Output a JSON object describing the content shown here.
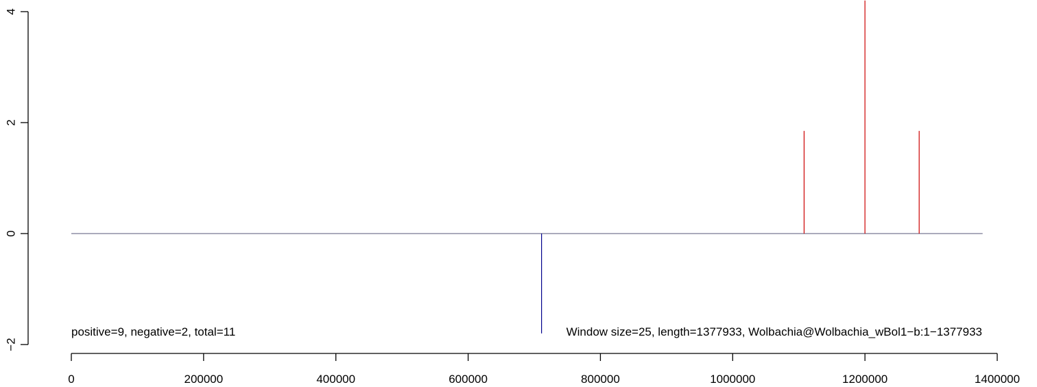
{
  "chart_data": {
    "type": "bar",
    "title": "",
    "xlabel": "",
    "ylabel": "",
    "xlim": [
      0,
      1377933
    ],
    "ylim": [
      -2,
      4
    ],
    "x_ticks": [
      0,
      200000,
      400000,
      600000,
      800000,
      1000000,
      1200000,
      1400000
    ],
    "x_tick_labels": [
      "0",
      "200000",
      "400000",
      "600000",
      "800000",
      "1000000",
      "1200000",
      "1400000"
    ],
    "y_ticks": [
      -2,
      0,
      2,
      4
    ],
    "y_tick_labels": [
      "−2",
      "0",
      "2",
      "4"
    ],
    "baseline": {
      "y": 0,
      "x_start": 0,
      "x_end": 1377933
    },
    "series": [
      {
        "color": "#cc0000",
        "points": [
          {
            "x": 1108000,
            "y": 1.85
          },
          {
            "x": 1200000,
            "y": 4.2
          },
          {
            "x": 1282000,
            "y": 1.85
          }
        ]
      },
      {
        "color": "#00008b",
        "points": [
          {
            "x": 711000,
            "y": -1.8
          }
        ]
      }
    ],
    "annotations": {
      "left": "positive=9, negative=2, total=11",
      "right": "Window size=25, length=1377933, Wolbachia@Wolbachia_wBol1−b:1−1377933"
    }
  }
}
